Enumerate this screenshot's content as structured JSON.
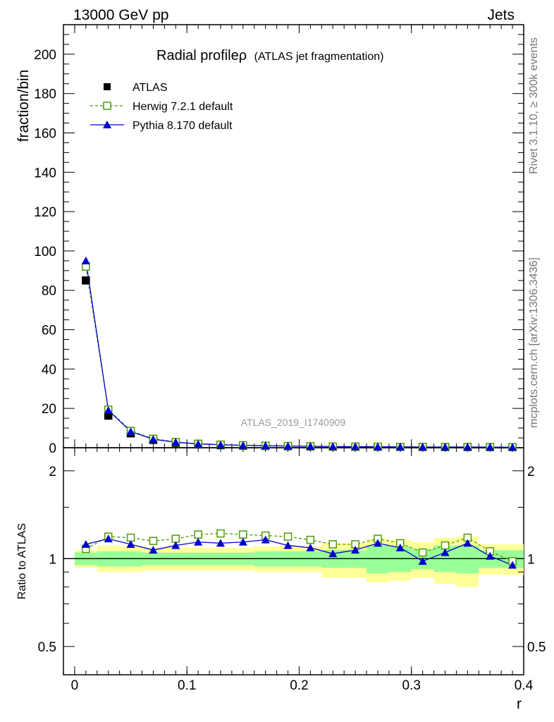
{
  "header": {
    "left": "13000 GeV pp",
    "right": "Jets"
  },
  "side_labels": {
    "upper": "Rivet 3.1.10, ≥ 300k events",
    "lower": "mcplots.cern.ch [arXiv:1306.3436]"
  },
  "chart_data": {
    "type": "line",
    "title": "Radial profileρ",
    "subtitle": "(ATLAS jet fragmentation)",
    "analysis_id": "ATLAS_2019_I1740909",
    "xlabel": "r",
    "ylabel": "fraction/bin",
    "ratio_ylabel": "Ratio to ATLAS",
    "xlim": [
      -0.01,
      0.4
    ],
    "ylim": [
      0,
      215
    ],
    "ratio_ylim": [
      0.4,
      2.4
    ],
    "ratio_scale": "log",
    "grid": false,
    "legend_position": "top-left",
    "x_ticks": [
      0,
      0.1,
      0.2,
      0.3,
      0.4
    ],
    "x_tick_labels": [
      "0",
      "0.1",
      "0.2",
      "0.3",
      "0.4"
    ],
    "y_ticks": [
      0,
      20,
      40,
      60,
      80,
      100,
      120,
      140,
      160,
      180,
      200
    ],
    "y_tick_labels": [
      "0",
      "20",
      "40",
      "60",
      "80",
      "100",
      "120",
      "140",
      "160",
      "180",
      "200"
    ],
    "ratio_ticks": [
      0.5,
      1,
      2
    ],
    "ratio_tick_labels": [
      "0.5",
      "1",
      "2"
    ],
    "x": [
      0.01,
      0.03,
      0.05,
      0.07,
      0.09,
      0.11,
      0.13,
      0.15,
      0.17,
      0.19,
      0.21,
      0.23,
      0.25,
      0.27,
      0.29,
      0.31,
      0.33,
      0.35,
      0.37,
      0.39
    ],
    "series": [
      {
        "name": "ATLAS",
        "style": "data-squares",
        "color": "#000000",
        "values": [
          85,
          16.3,
          7.3,
          4.0,
          2.5,
          1.7,
          1.3,
          1.05,
          0.9,
          0.75,
          0.65,
          0.55,
          0.5,
          0.45,
          0.4,
          0.38,
          0.35,
          0.32,
          0.3,
          0.28
        ]
      },
      {
        "name": "Herwig 7.2.1 default",
        "style": "dashed-open-squares",
        "color": "#4e9a06",
        "values": [
          92,
          19.4,
          8.6,
          4.6,
          2.95,
          2.06,
          1.6,
          1.28,
          1.08,
          0.9,
          0.76,
          0.62,
          0.55,
          0.53,
          0.45,
          0.4,
          0.39,
          0.38,
          0.32,
          0.28
        ]
      },
      {
        "name": "Pythia 8.170 default",
        "style": "solid-filled-triangles",
        "color": "#0000cc",
        "values": [
          95,
          19.0,
          8.2,
          4.3,
          2.8,
          1.94,
          1.48,
          1.2,
          1.05,
          0.84,
          0.72,
          0.58,
          0.52,
          0.51,
          0.44,
          0.37,
          0.37,
          0.37,
          0.31,
          0.27
        ]
      }
    ],
    "ratio": {
      "herwig": [
        1.08,
        1.19,
        1.18,
        1.15,
        1.17,
        1.21,
        1.22,
        1.21,
        1.2,
        1.19,
        1.16,
        1.12,
        1.12,
        1.17,
        1.13,
        1.05,
        1.11,
        1.18,
        1.06,
        0.98
      ],
      "pythia": [
        1.12,
        1.17,
        1.12,
        1.07,
        1.11,
        1.14,
        1.13,
        1.14,
        1.16,
        1.11,
        1.09,
        1.04,
        1.07,
        1.13,
        1.09,
        0.98,
        1.05,
        1.13,
        1.02,
        0.95
      ]
    },
    "bands": {
      "yellow": [
        [
          0.93,
          1.07
        ],
        [
          0.9,
          1.11
        ],
        [
          0.9,
          1.1
        ],
        [
          0.91,
          1.09
        ],
        [
          0.91,
          1.09
        ],
        [
          0.91,
          1.09
        ],
        [
          0.91,
          1.09
        ],
        [
          0.91,
          1.09
        ],
        [
          0.9,
          1.1
        ],
        [
          0.9,
          1.1
        ],
        [
          0.9,
          1.1
        ],
        [
          0.86,
          1.13
        ],
        [
          0.86,
          1.13
        ],
        [
          0.83,
          1.17
        ],
        [
          0.84,
          1.16
        ],
        [
          0.86,
          1.14
        ],
        [
          0.82,
          1.18
        ],
        [
          0.8,
          1.19
        ],
        [
          0.88,
          1.12
        ],
        [
          0.88,
          1.12
        ]
      ],
      "green": [
        [
          0.95,
          1.05
        ],
        [
          0.94,
          1.06
        ],
        [
          0.94,
          1.06
        ],
        [
          0.95,
          1.05
        ],
        [
          0.95,
          1.05
        ],
        [
          0.95,
          1.05
        ],
        [
          0.95,
          1.05
        ],
        [
          0.95,
          1.05
        ],
        [
          0.94,
          1.06
        ],
        [
          0.94,
          1.06
        ],
        [
          0.94,
          1.06
        ],
        [
          0.93,
          1.07
        ],
        [
          0.93,
          1.07
        ],
        [
          0.89,
          1.11
        ],
        [
          0.9,
          1.1
        ],
        [
          0.92,
          1.08
        ],
        [
          0.9,
          1.11
        ],
        [
          0.89,
          1.11
        ],
        [
          0.93,
          1.07
        ],
        [
          0.93,
          1.07
        ]
      ],
      "colors": {
        "yellow": "#ffff99",
        "green": "#99ff99"
      }
    }
  }
}
